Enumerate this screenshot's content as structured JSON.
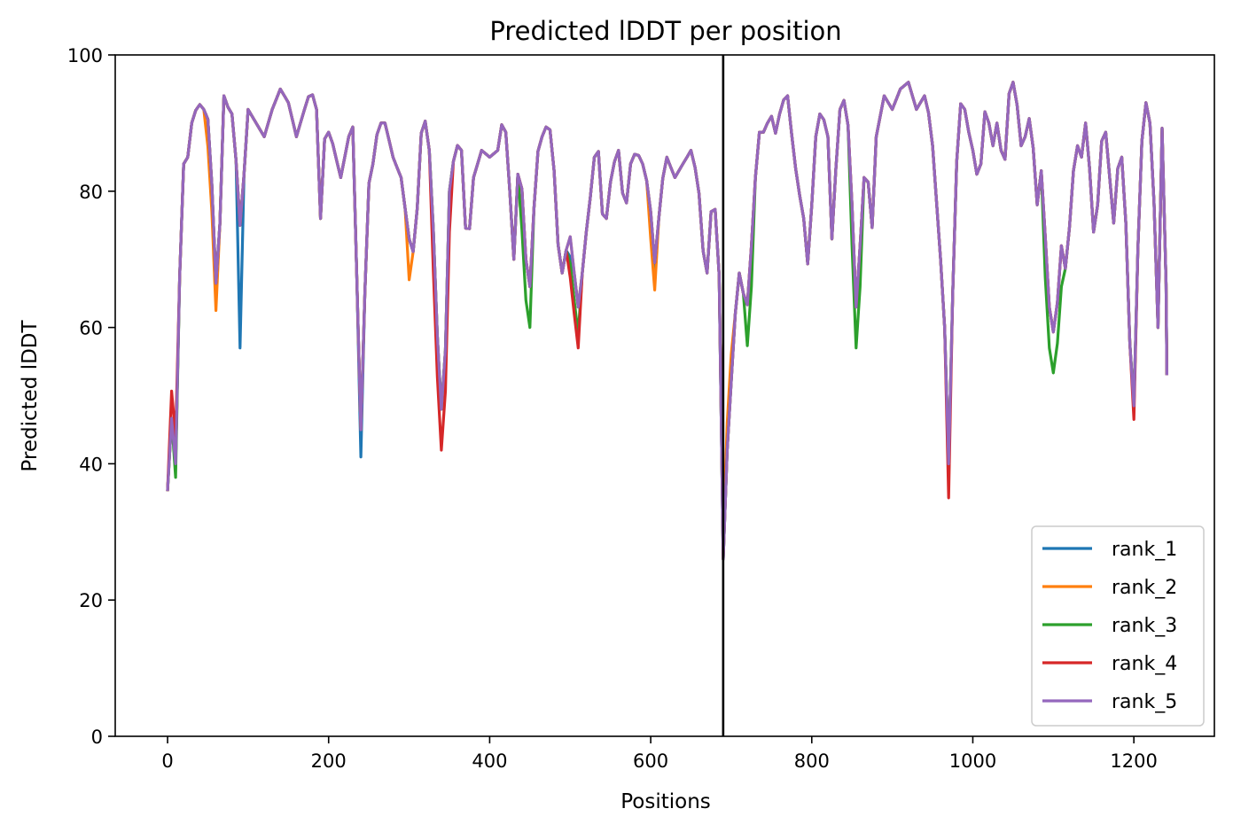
{
  "chart_data": {
    "type": "line",
    "title": "Predicted lDDT per position",
    "xlabel": "Positions",
    "ylabel": "Predicted lDDT",
    "xlim": [
      -65,
      1300
    ],
    "ylim": [
      0,
      100
    ],
    "xticks": [
      0,
      200,
      400,
      600,
      800,
      1000,
      1200
    ],
    "yticks": [
      0,
      20,
      40,
      60,
      80,
      100
    ],
    "grid": false,
    "legend_position": "lower-right",
    "vline_x": 690,
    "series": [
      {
        "name": "rank_1",
        "color": "#1f77b4"
      },
      {
        "name": "rank_2",
        "color": "#ff7f0e"
      },
      {
        "name": "rank_3",
        "color": "#2ca02c"
      },
      {
        "name": "rank_4",
        "color": "#d62728"
      },
      {
        "name": "rank_5",
        "color": "#9467bd"
      }
    ],
    "x_step": 5,
    "base_profile": [
      [
        0,
        36
      ],
      [
        3,
        48
      ],
      [
        6,
        46
      ],
      [
        10,
        40
      ],
      [
        14,
        62
      ],
      [
        18,
        84
      ],
      [
        24,
        84
      ],
      [
        30,
        90
      ],
      [
        38,
        93
      ],
      [
        45,
        92
      ],
      [
        52,
        90
      ],
      [
        58,
        72
      ],
      [
        62,
        61
      ],
      [
        66,
        80
      ],
      [
        70,
        94
      ],
      [
        76,
        92
      ],
      [
        82,
        91
      ],
      [
        88,
        78
      ],
      [
        92,
        72
      ],
      [
        96,
        86
      ],
      [
        100,
        92
      ],
      [
        110,
        90
      ],
      [
        120,
        88
      ],
      [
        130,
        92
      ],
      [
        140,
        95
      ],
      [
        150,
        93
      ],
      [
        160,
        88
      ],
      [
        170,
        92
      ],
      [
        178,
        95
      ],
      [
        185,
        92
      ],
      [
        190,
        76
      ],
      [
        196,
        90
      ],
      [
        205,
        87
      ],
      [
        215,
        82
      ],
      [
        225,
        88
      ],
      [
        232,
        90
      ],
      [
        236,
        60
      ],
      [
        240,
        45
      ],
      [
        244,
        60
      ],
      [
        248,
        80
      ],
      [
        255,
        84
      ],
      [
        262,
        90
      ],
      [
        270,
        90
      ],
      [
        280,
        85
      ],
      [
        290,
        82
      ],
      [
        300,
        73
      ],
      [
        308,
        70
      ],
      [
        312,
        85
      ],
      [
        318,
        92
      ],
      [
        325,
        86
      ],
      [
        332,
        70
      ],
      [
        336,
        55
      ],
      [
        340,
        48
      ],
      [
        344,
        52
      ],
      [
        350,
        80
      ],
      [
        358,
        87
      ],
      [
        365,
        86
      ],
      [
        372,
        70
      ],
      [
        380,
        82
      ],
      [
        390,
        86
      ],
      [
        400,
        85
      ],
      [
        410,
        86
      ],
      [
        418,
        92
      ],
      [
        424,
        82
      ],
      [
        430,
        70
      ],
      [
        436,
        85
      ],
      [
        442,
        78
      ],
      [
        448,
        62
      ],
      [
        452,
        70
      ],
      [
        458,
        85
      ],
      [
        465,
        88
      ],
      [
        472,
        90
      ],
      [
        478,
        88
      ],
      [
        484,
        73
      ],
      [
        490,
        68
      ],
      [
        496,
        72
      ],
      [
        502,
        74
      ],
      [
        508,
        62
      ],
      [
        512,
        64
      ],
      [
        518,
        72
      ],
      [
        524,
        78
      ],
      [
        530,
        85
      ],
      [
        536,
        86
      ],
      [
        542,
        72
      ],
      [
        548,
        80
      ],
      [
        554,
        84
      ],
      [
        560,
        86
      ],
      [
        568,
        76
      ],
      [
        575,
        84
      ],
      [
        582,
        86
      ],
      [
        590,
        84
      ],
      [
        598,
        80
      ],
      [
        606,
        68
      ],
      [
        612,
        80
      ],
      [
        620,
        85
      ],
      [
        630,
        82
      ],
      [
        640,
        84
      ],
      [
        650,
        86
      ],
      [
        658,
        82
      ],
      [
        664,
        75
      ],
      [
        668,
        60
      ],
      [
        672,
        76
      ],
      [
        678,
        78
      ],
      [
        684,
        76
      ],
      [
        690,
        26
      ],
      [
        694,
        40
      ],
      [
        700,
        52
      ],
      [
        706,
        64
      ],
      [
        712,
        70
      ],
      [
        718,
        60
      ],
      [
        724,
        70
      ],
      [
        730,
        82
      ],
      [
        736,
        90
      ],
      [
        742,
        88
      ],
      [
        748,
        92
      ],
      [
        756,
        88
      ],
      [
        762,
        93
      ],
      [
        770,
        94
      ],
      [
        778,
        85
      ],
      [
        784,
        80
      ],
      [
        790,
        76
      ],
      [
        796,
        68
      ],
      [
        800,
        78
      ],
      [
        806,
        90
      ],
      [
        812,
        92
      ],
      [
        820,
        88
      ],
      [
        826,
        70
      ],
      [
        832,
        90
      ],
      [
        838,
        94
      ],
      [
        844,
        92
      ],
      [
        850,
        78
      ],
      [
        856,
        60
      ],
      [
        862,
        78
      ],
      [
        868,
        86
      ],
      [
        874,
        72
      ],
      [
        880,
        88
      ],
      [
        890,
        94
      ],
      [
        900,
        92
      ],
      [
        910,
        95
      ],
      [
        920,
        96
      ],
      [
        930,
        92
      ],
      [
        940,
        94
      ],
      [
        948,
        90
      ],
      [
        954,
        80
      ],
      [
        960,
        70
      ],
      [
        966,
        58
      ],
      [
        970,
        40
      ],
      [
        974,
        60
      ],
      [
        978,
        80
      ],
      [
        984,
        93
      ],
      [
        990,
        92
      ],
      [
        996,
        88
      ],
      [
        1002,
        85
      ],
      [
        1008,
        80
      ],
      [
        1014,
        92
      ],
      [
        1020,
        90
      ],
      [
        1026,
        86
      ],
      [
        1032,
        92
      ],
      [
        1038,
        80
      ],
      [
        1044,
        94
      ],
      [
        1050,
        96
      ],
      [
        1056,
        92
      ],
      [
        1062,
        84
      ],
      [
        1068,
        92
      ],
      [
        1074,
        88
      ],
      [
        1080,
        78
      ],
      [
        1086,
        84
      ],
      [
        1092,
        68
      ],
      [
        1098,
        58
      ],
      [
        1104,
        62
      ],
      [
        1110,
        72
      ],
      [
        1116,
        68
      ],
      [
        1122,
        78
      ],
      [
        1128,
        88
      ],
      [
        1134,
        84
      ],
      [
        1140,
        90
      ],
      [
        1146,
        82
      ],
      [
        1152,
        70
      ],
      [
        1158,
        86
      ],
      [
        1164,
        90
      ],
      [
        1170,
        82
      ],
      [
        1176,
        74
      ],
      [
        1182,
        88
      ],
      [
        1188,
        82
      ],
      [
        1194,
        62
      ],
      [
        1198,
        45
      ],
      [
        1202,
        52
      ],
      [
        1206,
        78
      ],
      [
        1212,
        92
      ],
      [
        1218,
        94
      ],
      [
        1224,
        82
      ],
      [
        1230,
        60
      ],
      [
        1234,
        88
      ],
      [
        1238,
        93
      ],
      [
        1241,
        53
      ]
    ],
    "series_offsets": [
      [
        [
          90,
          94,
          -18
        ],
        [
          236,
          244,
          -4
        ],
        [
          500,
          504,
          -3
        ],
        [
          600,
          606,
          -2
        ]
      ],
      [
        [
          50,
          64,
          -4
        ],
        [
          300,
          304,
          -6
        ],
        [
          600,
          606,
          -4
        ],
        [
          690,
          700,
          4
        ]
      ],
      [
        [
          10,
          14,
          -2
        ],
        [
          440,
          452,
          -6
        ],
        [
          500,
          510,
          -4
        ],
        [
          716,
          726,
          -6
        ],
        [
          850,
          860,
          -6
        ],
        [
          1090,
          1110,
          -6
        ]
      ],
      [
        [
          4,
          10,
          4
        ],
        [
          330,
          350,
          -6
        ],
        [
          500,
          512,
          -6
        ],
        [
          966,
          974,
          -5
        ],
        [
          1196,
          1202,
          -2
        ]
      ],
      [
        [
          0,
          0,
          0
        ]
      ]
    ]
  }
}
